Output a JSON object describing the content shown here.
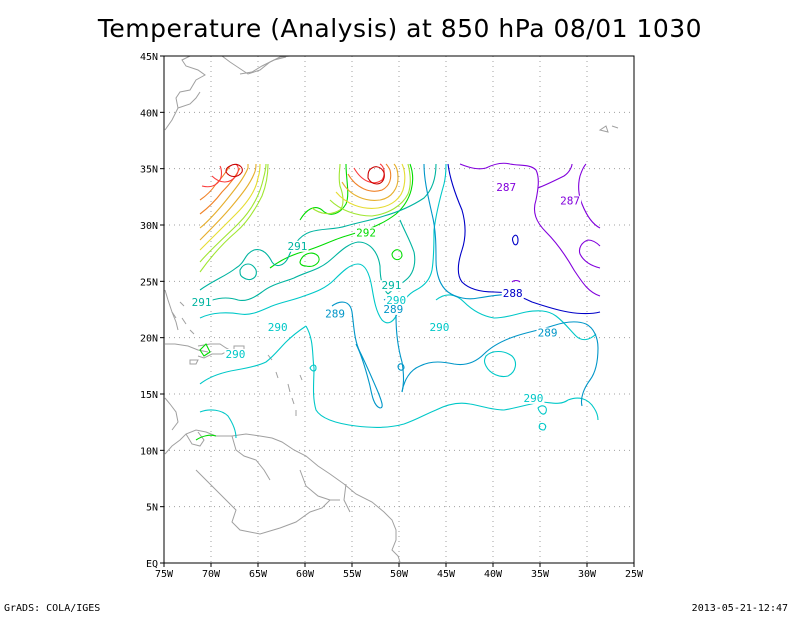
{
  "title": "Temperature (Analysis) at 850 hPa 08/01 1030",
  "footer": {
    "left": "GrADS: COLA/IGES",
    "right": "2013-05-21-12:47"
  },
  "colors": {
    "coast": "#a0a0a0",
    "grid": "#a0a0a0",
    "c286": "#0000c8",
    "c287": "#8200dc",
    "c289": "#0096c8",
    "c290": "#00c8c8",
    "c291": "#00b4a0",
    "c292": "#00dc00",
    "warm": [
      "#a0e632",
      "#e6dc32",
      "#e6af2d",
      "#f08228",
      "#fa3c3c",
      "#c80000"
    ]
  },
  "chart_data": {
    "type": "contour",
    "title": "Temperature (Analysis) at 850 hPa 08/01 1030",
    "x_ticks": [
      "75W",
      "70W",
      "65W",
      "60W",
      "55W",
      "50W",
      "45W",
      "40W",
      "35W",
      "30W",
      "25W"
    ],
    "y_ticks": [
      "EQ",
      "5N",
      "10N",
      "15N",
      "20N",
      "25N",
      "30N",
      "35N",
      "40N",
      "45N"
    ],
    "xlim": [
      -75,
      -25
    ],
    "ylim": [
      0,
      45
    ],
    "grid": true,
    "labels": [
      {
        "text": "287",
        "lon": -38.6,
        "lat": 33.0,
        "color": "c287"
      },
      {
        "text": "287",
        "lon": -31.8,
        "lat": 31.8,
        "color": "c287"
      },
      {
        "text": "292",
        "lon": -53.5,
        "lat": 29.0,
        "color": "c292"
      },
      {
        "text": "291",
        "lon": -60.8,
        "lat": 27.8,
        "color": "c291"
      },
      {
        "text": "291",
        "lon": -50.8,
        "lat": 24.3,
        "color": "c291"
      },
      {
        "text": "291",
        "lon": -71.0,
        "lat": 22.8,
        "color": "c291"
      },
      {
        "text": "290",
        "lon": -50.3,
        "lat": 23.0,
        "color": "c290"
      },
      {
        "text": "289",
        "lon": -50.6,
        "lat": 22.2,
        "color": "c289"
      },
      {
        "text": "289",
        "lon": -56.8,
        "lat": 21.8,
        "color": "c289"
      },
      {
        "text": "288",
        "lon": -37.9,
        "lat": 23.6,
        "color": "c286"
      },
      {
        "text": "290",
        "lon": -62.9,
        "lat": 20.6,
        "color": "c290"
      },
      {
        "text": "290",
        "lon": -45.7,
        "lat": 20.6,
        "color": "c290"
      },
      {
        "text": "289",
        "lon": -34.2,
        "lat": 20.1,
        "color": "c289"
      },
      {
        "text": "290",
        "lon": -67.4,
        "lat": 18.2,
        "color": "c290"
      },
      {
        "text": "290",
        "lon": -35.7,
        "lat": 14.3,
        "color": "c290"
      }
    ]
  }
}
